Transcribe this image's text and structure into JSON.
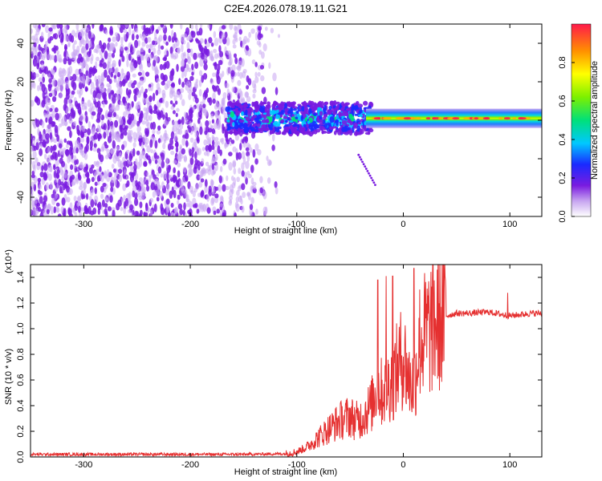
{
  "title": "C2E4.2026.078.19.11.G21",
  "chart_data": [
    {
      "type": "heatmap",
      "xlabel": "Height of straight line (km)",
      "ylabel": "Frequency (Hz)",
      "xlim": [
        -350,
        130
      ],
      "ylim": [
        -50,
        50
      ],
      "xticks": [
        -300,
        -200,
        -100,
        0,
        100
      ],
      "yticks": [
        -40,
        -20,
        0,
        20,
        40
      ],
      "grid": false,
      "colorbar": {
        "label": "Normalized spectral amplitude",
        "range": [
          0,
          1
        ],
        "ticks": [
          "0.0",
          "0.2",
          "0.4",
          "0.6",
          "0.8"
        ]
      },
      "features": [
        {
          "region": [
            -350,
            -170
          ],
          "frequency_spread": [
            -50,
            50
          ],
          "amplitude": "low, scattered (purple)"
        },
        {
          "region": [
            -170,
            -110
          ],
          "frequency_spread": [
            -50,
            50
          ],
          "amplitude": "sparse, fading"
        },
        {
          "region": [
            -160,
            -30
          ],
          "frequency_center": 0,
          "amplitude": "0.2-0.6, band ±8 Hz"
        },
        {
          "region": [
            -30,
            130
          ],
          "frequency_center": 1,
          "amplitude": "0.5-1.0, narrow band ±4 Hz"
        }
      ]
    },
    {
      "type": "line",
      "xlabel": "Height of straight line (km)",
      "ylabel": "SNR (10 * v/v)",
      "y_multiplier": "(x10⁴)",
      "xlim": [
        -350,
        130
      ],
      "ylim": [
        0,
        1.5
      ],
      "xticks": [
        -300,
        -200,
        -100,
        0,
        100
      ],
      "yticks": [
        "0.0",
        "0.2",
        "0.4",
        "0.6",
        "0.8",
        "1.0",
        "1.2",
        "1.4"
      ],
      "color": "#e53030",
      "x": [
        -350,
        -300,
        -250,
        -200,
        -150,
        -110,
        -100,
        -90,
        -80,
        -70,
        -60,
        -50,
        -45,
        -40,
        -35,
        -30,
        -25,
        -20,
        -15,
        -10,
        -5,
        0,
        5,
        10,
        15,
        20,
        25,
        30,
        35,
        40,
        50,
        60,
        80,
        100,
        120,
        130
      ],
      "y": [
        0.02,
        0.02,
        0.02,
        0.02,
        0.02,
        0.025,
        0.04,
        0.08,
        0.15,
        0.22,
        0.28,
        0.32,
        0.28,
        0.3,
        0.35,
        0.4,
        0.55,
        0.5,
        0.55,
        0.6,
        0.7,
        0.8,
        0.6,
        0.55,
        0.9,
        0.95,
        1.0,
        1.05,
        1.07,
        1.1,
        1.12,
        1.12,
        1.13,
        1.1,
        1.12,
        1.12
      ],
      "spikes": [
        {
          "x": -24,
          "y": 1.38
        },
        {
          "x": -16,
          "y": 1.41
        },
        {
          "x": -10,
          "y": 1.41
        },
        {
          "x": 10,
          "y": 1.47
        },
        {
          "x": 98,
          "y": 1.28
        }
      ]
    }
  ]
}
